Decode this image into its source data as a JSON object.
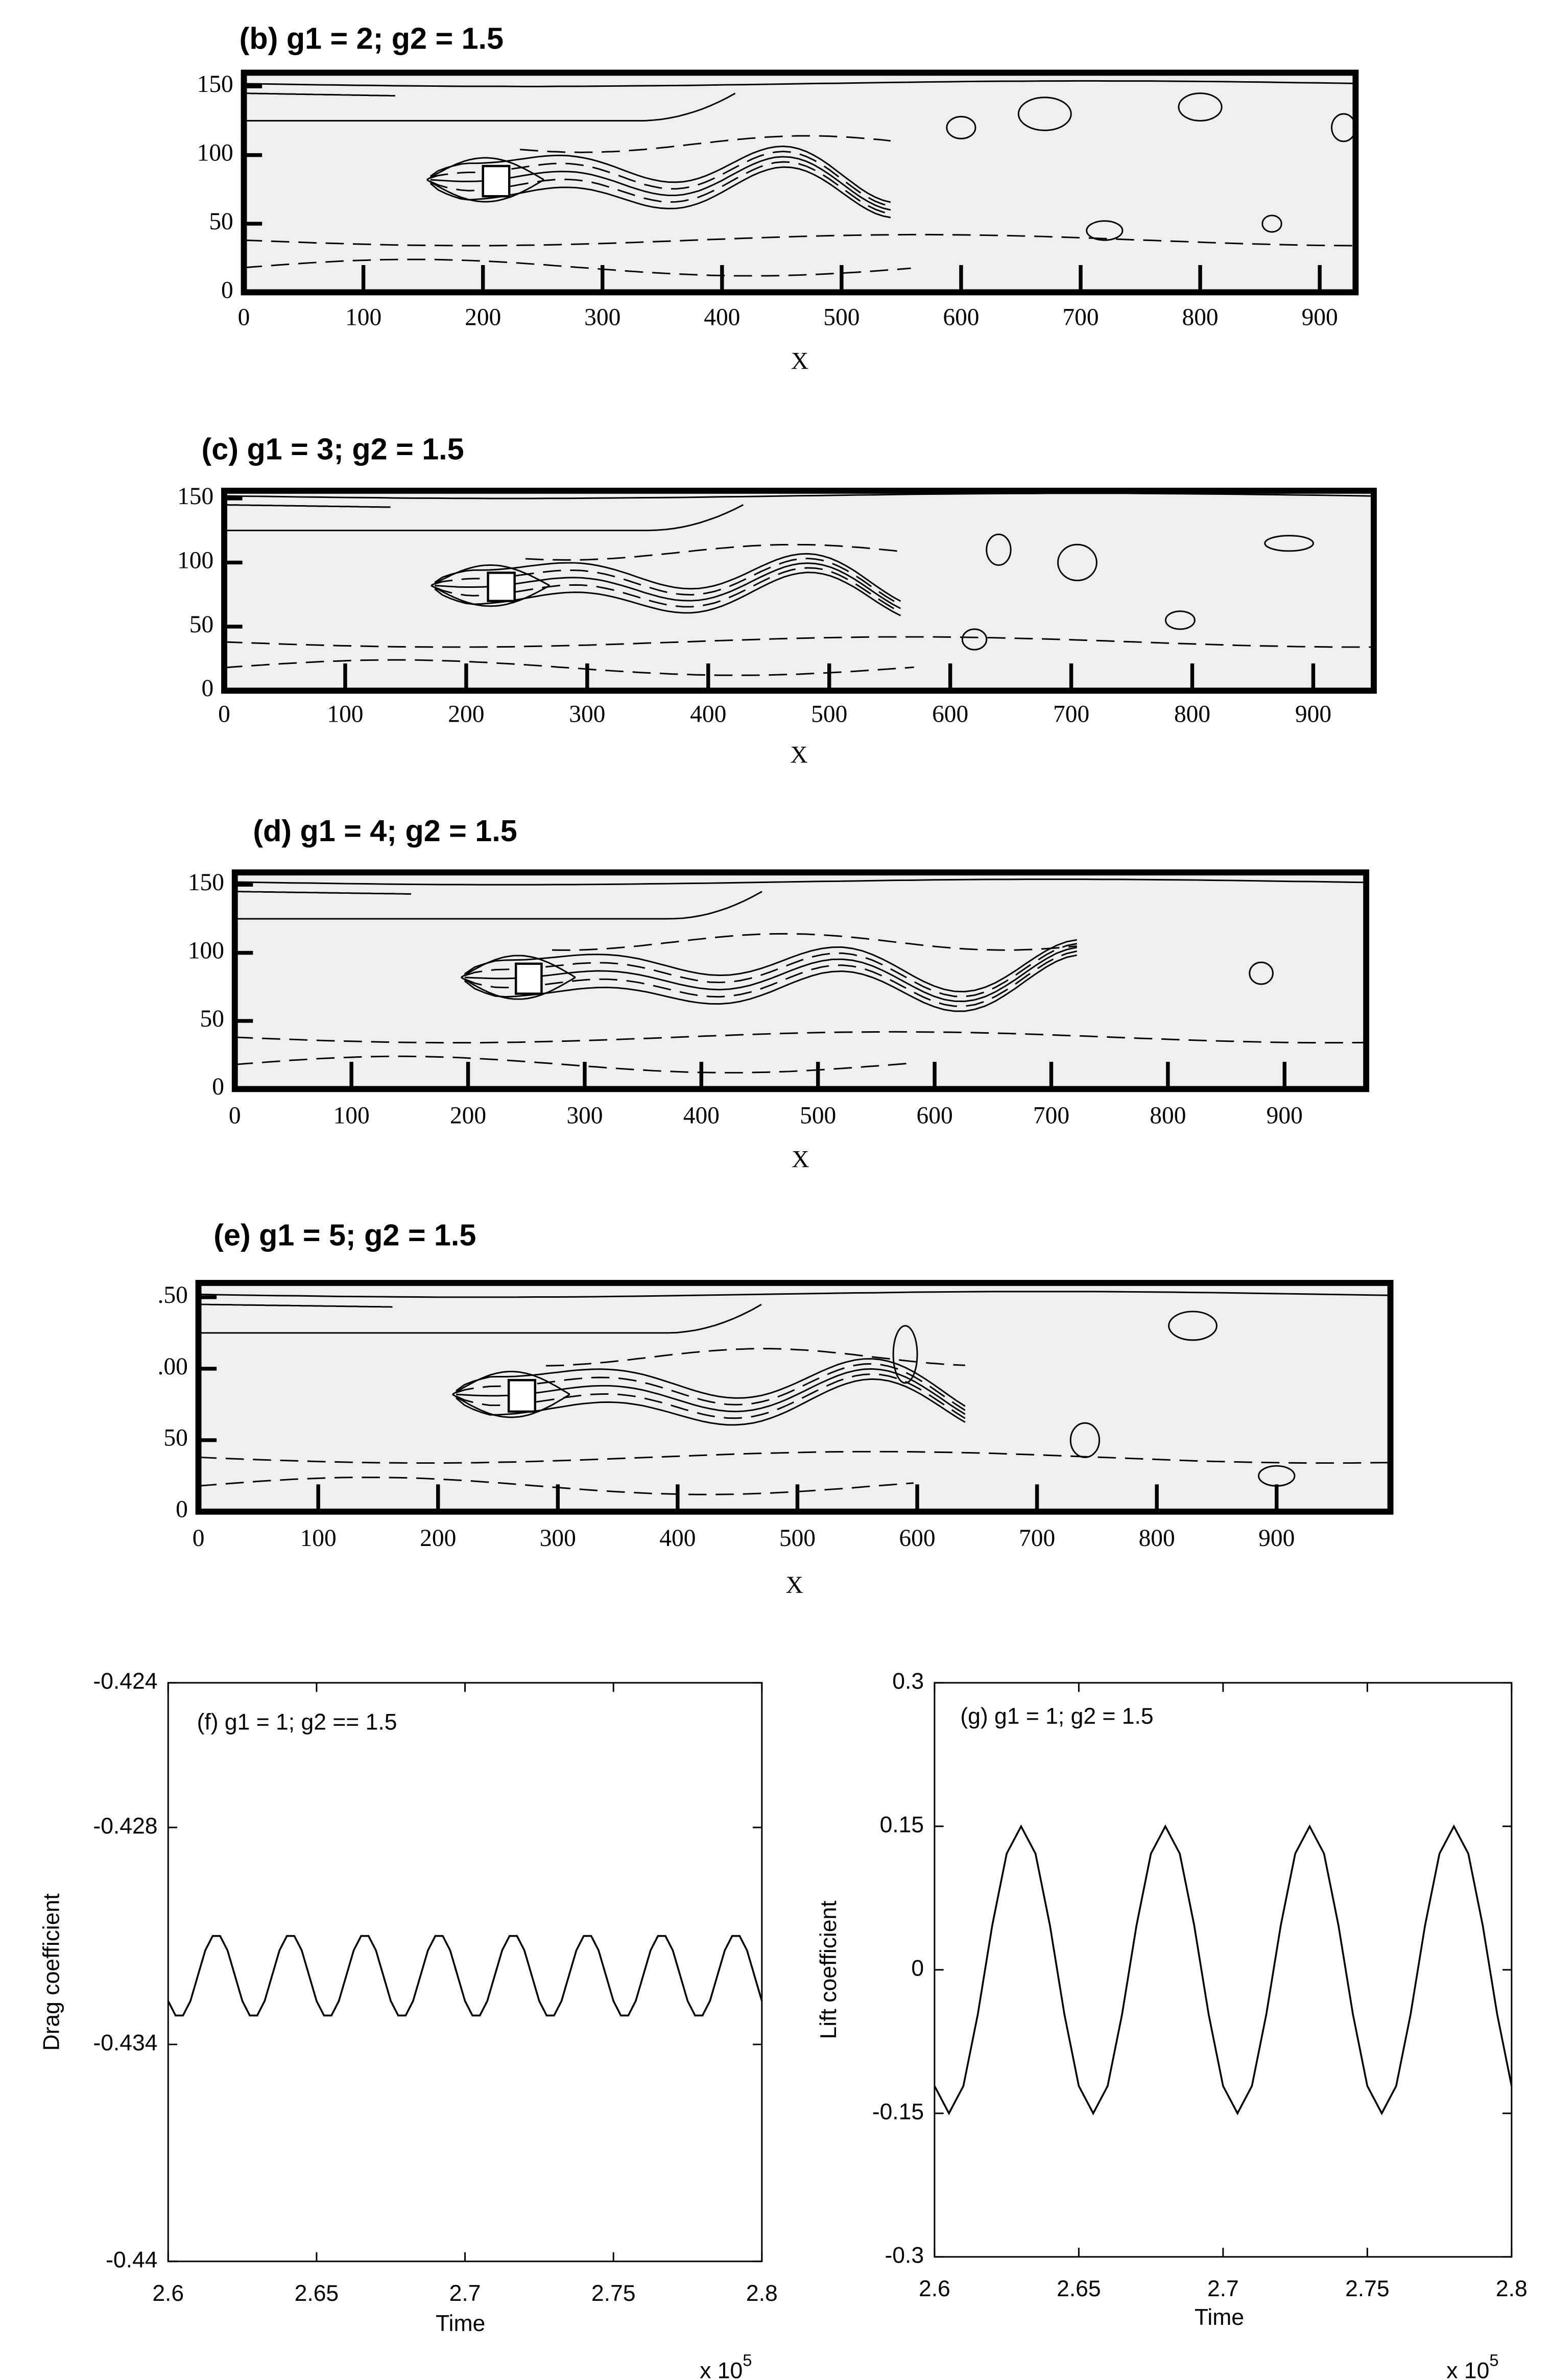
{
  "chart_data": [
    {
      "type": "contour",
      "title": "(b) g1 = 2; g2 = 1.5",
      "xlabel": "X",
      "xlim": [
        0,
        930
      ],
      "ylim": [
        0,
        160
      ],
      "xticks": [
        0,
        100,
        200,
        300,
        400,
        500,
        600,
        700,
        800,
        900
      ],
      "yticks": [
        0,
        50,
        100,
        150
      ]
    },
    {
      "type": "contour",
      "title": "(c) g1 = 3; g2 = 1.5",
      "xlabel": "X",
      "xlim": [
        0,
        950
      ],
      "ylim": [
        0,
        156
      ],
      "xticks": [
        0,
        100,
        200,
        300,
        400,
        500,
        600,
        700,
        800,
        900
      ],
      "yticks": [
        0,
        50,
        100,
        150
      ]
    },
    {
      "type": "contour",
      "title": "(d) g1 = 4; g2 = 1.5",
      "xlabel": "X",
      "xlim": [
        0,
        970
      ],
      "ylim": [
        0,
        159
      ],
      "xticks": [
        0,
        100,
        200,
        300,
        400,
        500,
        600,
        700,
        800,
        900
      ],
      "yticks": [
        0,
        50,
        100,
        150
      ]
    },
    {
      "type": "contour",
      "title": "(e) g1 = 5; g2 = 1.5",
      "xlabel": "X",
      "xlim": [
        0,
        995
      ],
      "ylim": [
        0,
        160
      ],
      "xticks": [
        0,
        100,
        200,
        300,
        400,
        500,
        600,
        700,
        800,
        900
      ],
      "yticks": [
        0,
        50,
        {
          "value": 100,
          "label": ".00"
        },
        {
          "value": 150,
          "label": ".50"
        }
      ]
    },
    {
      "type": "line",
      "annotation": "(f) g1 = 1; g2 == 1.5",
      "xlabel": "Time",
      "ylabel": "Drag coefficient",
      "x_multiplier": {
        "base": "x 10",
        "exponent": "5"
      },
      "color": "#000000",
      "xlim": [
        2.6,
        2.8
      ],
      "ylim": [
        -0.44,
        -0.424
      ],
      "xticks": [
        2.6,
        2.65,
        2.7,
        2.75,
        2.8
      ],
      "yticks": [
        -0.424,
        -0.428,
        -0.434,
        -0.44
      ],
      "x": [
        2.6,
        2.6025,
        2.605,
        2.6075,
        2.61,
        2.6125,
        2.615,
        2.6175,
        2.62,
        2.6225,
        2.625,
        2.6275,
        2.63,
        2.6325,
        2.635,
        2.6375,
        2.64,
        2.6425,
        2.645,
        2.6475,
        2.65,
        2.6525,
        2.655,
        2.6575,
        2.66,
        2.6625,
        2.665,
        2.6675,
        2.67,
        2.6725,
        2.675,
        2.6775,
        2.68,
        2.6825,
        2.685,
        2.6875,
        2.69,
        2.6925,
        2.695,
        2.6975,
        2.7,
        2.7025,
        2.705,
        2.7075,
        2.71,
        2.7125,
        2.715,
        2.7175,
        2.72,
        2.7225,
        2.725,
        2.7275,
        2.73,
        2.7325,
        2.735,
        2.7375,
        2.74,
        2.7425,
        2.745,
        2.7475,
        2.75,
        2.7525,
        2.755,
        2.7575,
        2.76,
        2.7625,
        2.765,
        2.7675,
        2.77,
        2.7725,
        2.775,
        2.7775,
        2.78,
        2.7825,
        2.785,
        2.7875,
        2.79,
        2.7925,
        2.795,
        2.7975,
        2.8
      ],
      "values": [
        -0.4328,
        -0.4332,
        -0.4332,
        -0.4328,
        -0.4321,
        -0.4314,
        -0.431,
        -0.431,
        -0.4314,
        -0.4321,
        -0.4328,
        -0.4332,
        -0.4332,
        -0.4328,
        -0.4321,
        -0.4314,
        -0.431,
        -0.431,
        -0.4314,
        -0.4321,
        -0.4328,
        -0.4332,
        -0.4332,
        -0.4328,
        -0.4321,
        -0.4314,
        -0.431,
        -0.431,
        -0.4314,
        -0.4321,
        -0.4328,
        -0.4332,
        -0.4332,
        -0.4328,
        -0.4321,
        -0.4314,
        -0.431,
        -0.431,
        -0.4314,
        -0.4321,
        -0.4328,
        -0.4332,
        -0.4332,
        -0.4328,
        -0.4321,
        -0.4314,
        -0.431,
        -0.431,
        -0.4314,
        -0.4321,
        -0.4328,
        -0.4332,
        -0.4332,
        -0.4328,
        -0.4321,
        -0.4314,
        -0.431,
        -0.431,
        -0.4314,
        -0.4321,
        -0.4328,
        -0.4332,
        -0.4332,
        -0.4328,
        -0.4321,
        -0.4314,
        -0.431,
        -0.431,
        -0.4314,
        -0.4321,
        -0.4328,
        -0.4332,
        -0.4332,
        -0.4328,
        -0.4321,
        -0.4314,
        -0.431,
        -0.431,
        -0.4314,
        -0.4321,
        -0.4328
      ]
    },
    {
      "type": "line",
      "annotation": "(g) g1 = 1; g2 = 1.5",
      "xlabel": "Time",
      "ylabel": "Lift coefficient",
      "x_multiplier": {
        "base": "x 10",
        "exponent": "5"
      },
      "color": "#000000",
      "xlim": [
        2.6,
        2.8
      ],
      "ylim": [
        -0.3,
        0.3
      ],
      "xticks": [
        2.6,
        2.65,
        2.7,
        2.75,
        2.8
      ],
      "yticks": [
        -0.3,
        -0.15,
        0,
        0.15,
        0.3
      ],
      "x": [
        2.6,
        2.605,
        2.61,
        2.615,
        2.62,
        2.625,
        2.63,
        2.635,
        2.64,
        2.645,
        2.65,
        2.655,
        2.66,
        2.665,
        2.67,
        2.675,
        2.68,
        2.685,
        2.69,
        2.695,
        2.7,
        2.705,
        2.71,
        2.715,
        2.72,
        2.725,
        2.73,
        2.735,
        2.74,
        2.745,
        2.75,
        2.755,
        2.76,
        2.765,
        2.77,
        2.775,
        2.78,
        2.785,
        2.79,
        2.795,
        2.8
      ],
      "values": [
        -0.1214,
        -0.15,
        -0.1214,
        -0.0464,
        0.0464,
        0.1214,
        0.15,
        0.1214,
        0.0464,
        -0.0464,
        -0.1214,
        -0.15,
        -0.1214,
        -0.0464,
        0.0464,
        0.1214,
        0.15,
        0.1214,
        0.0464,
        -0.0464,
        -0.1214,
        -0.15,
        -0.1214,
        -0.0464,
        0.0464,
        0.1214,
        0.15,
        0.1214,
        0.0464,
        -0.0464,
        -0.1214,
        -0.15,
        -0.1214,
        -0.0464,
        0.0464,
        0.1214,
        0.15,
        0.1214,
        0.0464,
        -0.0464,
        -0.1214
      ]
    }
  ]
}
